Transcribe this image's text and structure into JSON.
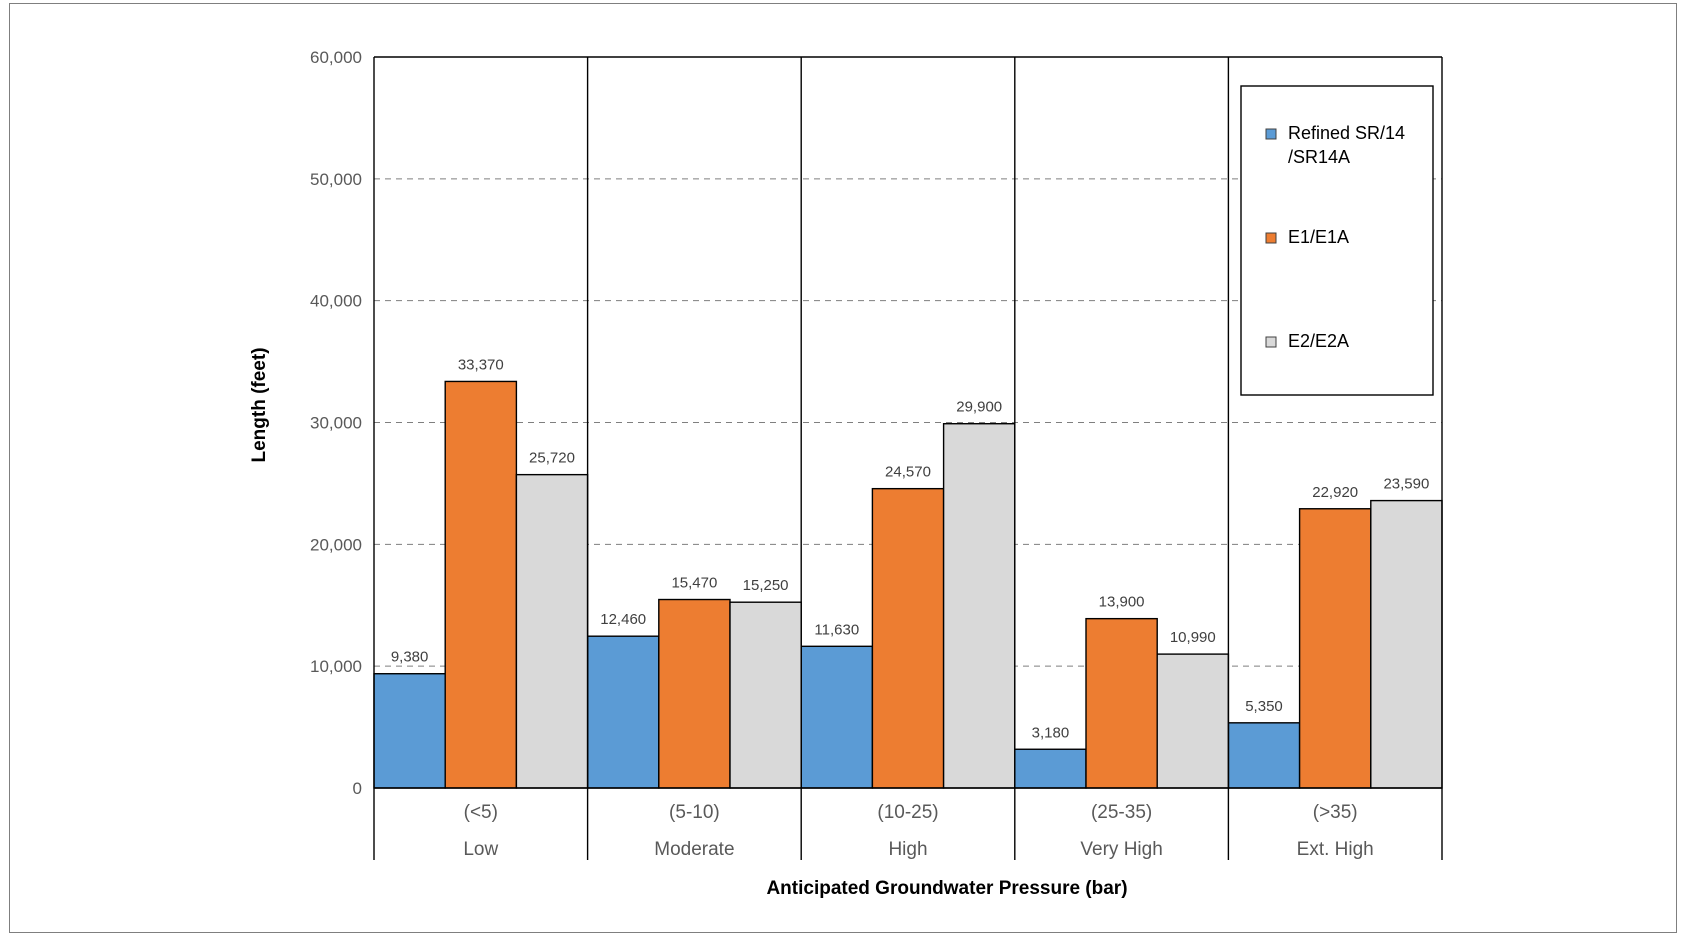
{
  "chart_data": {
    "type": "bar",
    "xlabel": "Anticipated Groundwater Pressure (bar)",
    "ylabel": "Length (feet)",
    "ylim": [
      0,
      60000
    ],
    "yticks": [
      0,
      10000,
      20000,
      30000,
      40000,
      50000,
      60000
    ],
    "ytick_labels": [
      "0",
      "10,000",
      "20,000",
      "30,000",
      "40,000",
      "50,000",
      "60,000"
    ],
    "grid": "horizontal dashed",
    "legend_position": "top-right",
    "categories": [
      {
        "range": "(<5)",
        "name": "Low"
      },
      {
        "range": "(5-10)",
        "name": "Moderate"
      },
      {
        "range": "(10-25)",
        "name": "High"
      },
      {
        "range": "(25-35)",
        "name": "Very High"
      },
      {
        "range": "(>35)",
        "name": "Ext. High"
      }
    ],
    "series": [
      {
        "name": "Refined SR/14 /SR14A",
        "legend_lines": [
          "Refined SR/14",
          "/SR14A"
        ],
        "color": "#5b9bd5",
        "values": [
          9380,
          12460,
          11630,
          3180,
          5350
        ],
        "labels": [
          "9,380",
          "12,460",
          "11,630",
          "3,180",
          "5,350"
        ]
      },
      {
        "name": "E1/E1A",
        "legend_lines": [
          "E1/E1A"
        ],
        "color": "#ed7d31",
        "values": [
          33370,
          15470,
          24570,
          13900,
          22920
        ],
        "labels": [
          "33,370",
          "15,470",
          "24,570",
          "13,900",
          "22,920"
        ]
      },
      {
        "name": "E2/E2A",
        "legend_lines": [
          "E2/E2A"
        ],
        "color": "#d9d9d9",
        "values": [
          25720,
          15250,
          29900,
          10990,
          23590
        ],
        "labels": [
          "25,720",
          "15,250",
          "29,900",
          "10,990",
          "23,590"
        ]
      }
    ]
  }
}
